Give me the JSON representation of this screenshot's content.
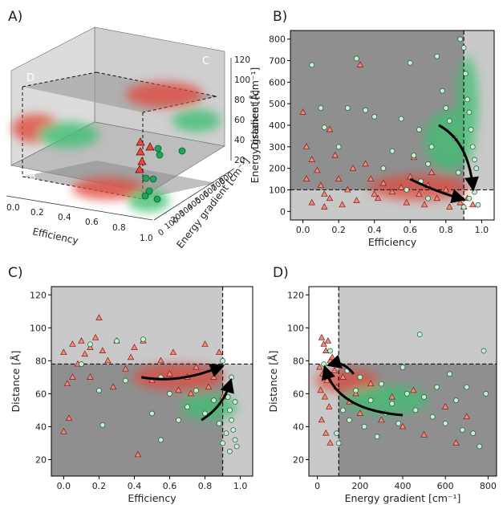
{
  "colors": {
    "red": "#d9534f",
    "red_marker": "#f08a7e",
    "green": "#3cb371",
    "green_marker": "#c9ecd4",
    "dark_region": "#8f8f8f",
    "light_region": "#c9c9c9",
    "white_region": "#ffffff",
    "big_green": "#22a35a"
  },
  "panels": {
    "A": {
      "label": "A)",
      "xlabel": "Efficiency",
      "ylabel": "Energy gradient [cm⁻¹]",
      "zlabel": "Distance [Å]",
      "x_ticks": [
        "0.0",
        "0.2",
        "0.4",
        "0.6",
        "0.8",
        "1.0"
      ],
      "y_ticks": [
        "0",
        "100",
        "200",
        "300",
        "400",
        "500",
        "600",
        "700",
        "800"
      ],
      "z_ticks": [
        "20",
        "40",
        "60",
        "80",
        "100",
        "120"
      ],
      "corner_labels": [
        "B",
        "C",
        "D"
      ]
    },
    "B": {
      "label": "B)"
    },
    "C": {
      "label": "C)"
    },
    "D": {
      "label": "D)"
    }
  },
  "chart_data": [
    {
      "id": "B",
      "type": "scatter",
      "xlabel": "Efficiency",
      "ylabel": "Energy gradient [cm⁻¹]",
      "xlim": [
        -0.07,
        1.07
      ],
      "ylim": [
        -40,
        840
      ],
      "x_ticks": [
        0.0,
        0.2,
        0.4,
        0.6,
        0.8,
        1.0
      ],
      "y_ticks": [
        0,
        100,
        200,
        300,
        400,
        500,
        600,
        700,
        800
      ],
      "x_tick_labels": [
        "0.0",
        "0.2",
        "0.4",
        "0.6",
        "0.8",
        "1.0"
      ],
      "y_tick_labels": [
        "0",
        "100",
        "200",
        "300",
        "400",
        "500",
        "600",
        "700",
        "800"
      ],
      "threshold_x": 0.9,
      "threshold_y": 100,
      "series": [
        {
          "marker": "triangle",
          "color": "red",
          "points": [
            [
              0.0,
              460
            ],
            [
              0.02,
              300
            ],
            [
              0.05,
              240
            ],
            [
              0.08,
              190
            ],
            [
              0.1,
              120
            ],
            [
              0.12,
              80
            ],
            [
              0.15,
              60
            ],
            [
              0.18,
              260
            ],
            [
              0.2,
              150
            ],
            [
              0.25,
              100
            ],
            [
              0.28,
              200
            ],
            [
              0.3,
              50
            ],
            [
              0.32,
              680
            ],
            [
              0.35,
              220
            ],
            [
              0.4,
              80
            ],
            [
              0.45,
              130
            ],
            [
              0.5,
              90
            ],
            [
              0.55,
              110
            ],
            [
              0.6,
              160
            ],
            [
              0.65,
              80
            ],
            [
              0.7,
              120
            ],
            [
              0.75,
              60
            ],
            [
              0.8,
              100
            ],
            [
              0.85,
              70
            ],
            [
              0.88,
              40
            ],
            [
              0.9,
              20
            ],
            [
              0.92,
              60
            ],
            [
              0.95,
              30
            ],
            [
              0.05,
              40
            ],
            [
              0.12,
              20
            ],
            [
              0.22,
              30
            ],
            [
              0.38,
              150
            ],
            [
              0.42,
              60
            ],
            [
              0.58,
              40
            ],
            [
              0.62,
              250
            ],
            [
              0.68,
              30
            ],
            [
              0.72,
              180
            ],
            [
              0.82,
              20
            ],
            [
              0.15,
              380
            ],
            [
              0.02,
              150
            ]
          ]
        },
        {
          "marker": "circle",
          "color": "green",
          "points": [
            [
              0.05,
              680
            ],
            [
              0.1,
              480
            ],
            [
              0.12,
              390
            ],
            [
              0.2,
              300
            ],
            [
              0.25,
              480
            ],
            [
              0.3,
              710
            ],
            [
              0.35,
              470
            ],
            [
              0.4,
              440
            ],
            [
              0.45,
              200
            ],
            [
              0.5,
              280
            ],
            [
              0.55,
              430
            ],
            [
              0.6,
              690
            ],
            [
              0.62,
              260
            ],
            [
              0.65,
              380
            ],
            [
              0.7,
              220
            ],
            [
              0.72,
              300
            ],
            [
              0.75,
              720
            ],
            [
              0.78,
              560
            ],
            [
              0.8,
              480
            ],
            [
              0.82,
              420
            ],
            [
              0.85,
              340
            ],
            [
              0.87,
              180
            ],
            [
              0.88,
              800
            ],
            [
              0.9,
              760
            ],
            [
              0.91,
              640
            ],
            [
              0.92,
              520
            ],
            [
              0.93,
              460
            ],
            [
              0.94,
              380
            ],
            [
              0.95,
              300
            ],
            [
              0.96,
              240
            ],
            [
              0.97,
              200
            ],
            [
              0.95,
              120
            ],
            [
              0.93,
              60
            ],
            [
              0.9,
              20
            ],
            [
              0.96,
              90
            ],
            [
              0.98,
              30
            ],
            [
              0.66,
              140
            ],
            [
              0.58,
              100
            ],
            [
              0.7,
              60
            ],
            [
              0.85,
              80
            ]
          ]
        }
      ]
    },
    {
      "id": "C",
      "type": "scatter",
      "xlabel": "Efficiency",
      "ylabel": "Distance [Å]",
      "xlim": [
        -0.07,
        1.07
      ],
      "ylim": [
        10,
        125
      ],
      "x_ticks": [
        0.0,
        0.2,
        0.4,
        0.6,
        0.8,
        1.0
      ],
      "y_ticks": [
        20,
        40,
        60,
        80,
        100,
        120
      ],
      "x_tick_labels": [
        "0.0",
        "0.2",
        "0.4",
        "0.6",
        "0.8",
        "1.0"
      ],
      "y_tick_labels": [
        "20",
        "40",
        "60",
        "80",
        "100",
        "120"
      ],
      "threshold_x": 0.9,
      "threshold_y": 78,
      "series": [
        {
          "marker": "triangle",
          "color": "red",
          "points": [
            [
              0.0,
              85
            ],
            [
              0.02,
              66
            ],
            [
              0.03,
              45
            ],
            [
              0.05,
              90
            ],
            [
              0.08,
              78
            ],
            [
              0.1,
              92
            ],
            [
              0.12,
              84
            ],
            [
              0.15,
              88
            ],
            [
              0.18,
              94
            ],
            [
              0.2,
              106
            ],
            [
              0.22,
              86
            ],
            [
              0.25,
              80
            ],
            [
              0.3,
              92
            ],
            [
              0.35,
              75
            ],
            [
              0.4,
              88
            ],
            [
              0.45,
              92
            ],
            [
              0.5,
              68
            ],
            [
              0.55,
              80
            ],
            [
              0.6,
              72
            ],
            [
              0.65,
              62
            ],
            [
              0.7,
              70
            ],
            [
              0.75,
              76
            ],
            [
              0.8,
              90
            ],
            [
              0.85,
              70
            ],
            [
              0.88,
              85
            ],
            [
              0.9,
              58
            ],
            [
              0.42,
              23
            ],
            [
              0.0,
              37
            ],
            [
              0.05,
              70
            ],
            [
              0.15,
              70
            ],
            [
              0.28,
              64
            ],
            [
              0.38,
              82
            ],
            [
              0.62,
              85
            ],
            [
              0.72,
              60
            ],
            [
              0.82,
              64
            ]
          ]
        },
        {
          "marker": "circle",
          "color": "green",
          "points": [
            [
              0.1,
              78
            ],
            [
              0.15,
              90
            ],
            [
              0.2,
              62
            ],
            [
              0.22,
              41
            ],
            [
              0.3,
              92
            ],
            [
              0.35,
              68
            ],
            [
              0.45,
              93
            ],
            [
              0.5,
              48
            ],
            [
              0.55,
              32
            ],
            [
              0.6,
              60
            ],
            [
              0.65,
              44
            ],
            [
              0.7,
              52
            ],
            [
              0.75,
              62
            ],
            [
              0.8,
              48
            ],
            [
              0.85,
              56
            ],
            [
              0.88,
              42
            ],
            [
              0.9,
              80
            ],
            [
              0.92,
              64
            ],
            [
              0.93,
              58
            ],
            [
              0.94,
              50
            ],
            [
              0.95,
              44
            ],
            [
              0.96,
              38
            ],
            [
              0.97,
              32
            ],
            [
              0.98,
              28
            ],
            [
              0.95,
              70
            ],
            [
              0.92,
              36
            ],
            [
              0.9,
              30
            ],
            [
              0.97,
              55
            ],
            [
              0.94,
              25
            ],
            [
              0.55,
              70
            ]
          ]
        }
      ]
    },
    {
      "id": "D",
      "type": "scatter",
      "xlabel": "Energy gradient [cm⁻¹]",
      "ylabel": "Distance [Å]",
      "xlim": [
        -40,
        840
      ],
      "ylim": [
        10,
        125
      ],
      "x_ticks": [
        0,
        200,
        400,
        600,
        800
      ],
      "y_ticks": [
        20,
        40,
        60,
        80,
        100,
        120
      ],
      "x_tick_labels": [
        "0",
        "200",
        "400",
        "600",
        "800"
      ],
      "y_tick_labels": [
        "20",
        "40",
        "60",
        "80",
        "100",
        "120"
      ],
      "threshold_x": 100,
      "threshold_y": 78,
      "series": [
        {
          "marker": "triangle",
          "color": "red",
          "points": [
            [
              20,
              94
            ],
            [
              30,
              90
            ],
            [
              40,
              86
            ],
            [
              50,
              92
            ],
            [
              60,
              80
            ],
            [
              10,
              76
            ],
            [
              25,
              72
            ],
            [
              45,
              68
            ],
            [
              70,
              82
            ],
            [
              80,
              74
            ],
            [
              15,
              62
            ],
            [
              35,
              58
            ],
            [
              55,
              52
            ],
            [
              90,
              64
            ],
            [
              120,
              70
            ],
            [
              150,
              55
            ],
            [
              180,
              60
            ],
            [
              200,
              48
            ],
            [
              250,
              66
            ],
            [
              300,
              44
            ],
            [
              350,
              58
            ],
            [
              400,
              40
            ],
            [
              450,
              62
            ],
            [
              500,
              35
            ],
            [
              600,
              52
            ],
            [
              650,
              30
            ],
            [
              700,
              46
            ],
            [
              20,
              44
            ],
            [
              40,
              36
            ],
            [
              60,
              30
            ]
          ]
        },
        {
          "marker": "circle",
          "color": "green",
          "points": [
            [
              30,
              78
            ],
            [
              60,
              86
            ],
            [
              90,
              36
            ],
            [
              120,
              50
            ],
            [
              150,
              44
            ],
            [
              180,
              62
            ],
            [
              200,
              70
            ],
            [
              220,
              40
            ],
            [
              250,
              56
            ],
            [
              280,
              34
            ],
            [
              300,
              66
            ],
            [
              320,
              48
            ],
            [
              350,
              54
            ],
            [
              380,
              42
            ],
            [
              400,
              76
            ],
            [
              420,
              60
            ],
            [
              460,
              50
            ],
            [
              480,
              96
            ],
            [
              500,
              58
            ],
            [
              540,
              46
            ],
            [
              560,
              64
            ],
            [
              600,
              42
            ],
            [
              620,
              72
            ],
            [
              650,
              56
            ],
            [
              680,
              38
            ],
            [
              700,
              64
            ],
            [
              730,
              36
            ],
            [
              760,
              28
            ],
            [
              780,
              86
            ],
            [
              790,
              60
            ],
            [
              100,
              30
            ],
            [
              140,
              74
            ]
          ]
        }
      ]
    }
  ]
}
